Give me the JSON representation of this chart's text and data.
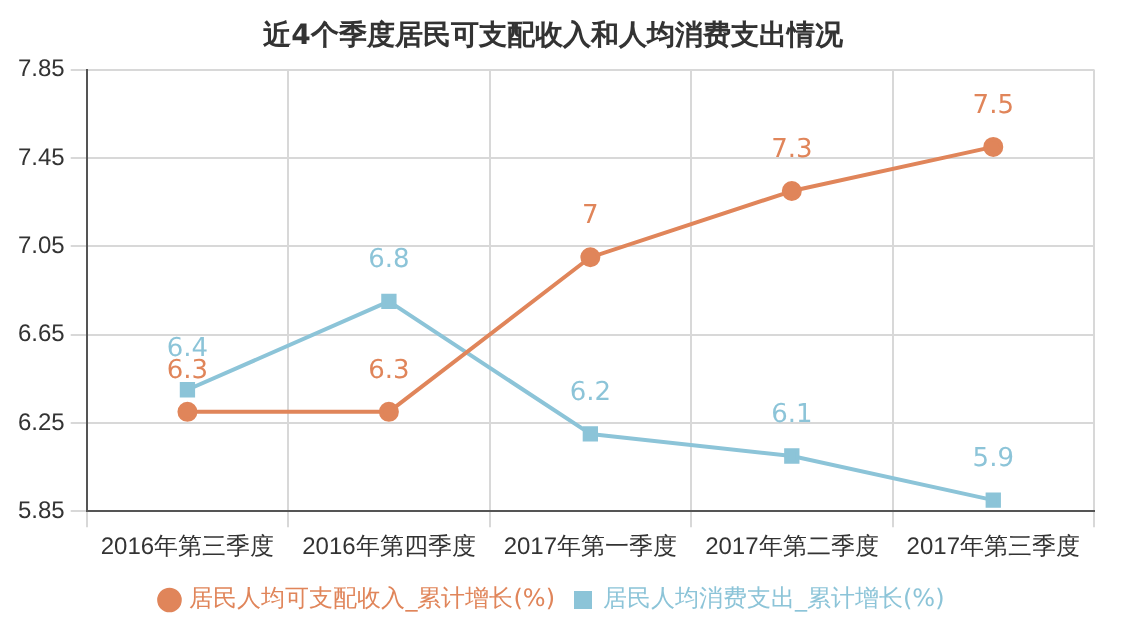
{
  "chart_data": {
    "type": "line",
    "title": "近4个季度居民可支配收入和人均消费支出情况",
    "categories": [
      "2016年第三季度",
      "2016年第四季度",
      "2017年第一季度",
      "2017年第二季度",
      "2017年第三季度"
    ],
    "series": [
      {
        "name": "居民人均可支配收入_累计增长(%)",
        "color": "#e0855a",
        "marker": "circle",
        "values": [
          6.3,
          6.3,
          7,
          7.3,
          7.5
        ]
      },
      {
        "name": "居民人均消费支出_累计增长(%)",
        "color": "#8cc4d8",
        "marker": "square",
        "values": [
          6.4,
          6.8,
          6.2,
          6.1,
          5.9
        ]
      }
    ],
    "ylim": [
      5.85,
      7.85
    ],
    "yticks": [
      5.85,
      6.25,
      6.65,
      7.05,
      7.45,
      7.85
    ],
    "grid": true,
    "legend": "bottom",
    "data_labels": true
  }
}
